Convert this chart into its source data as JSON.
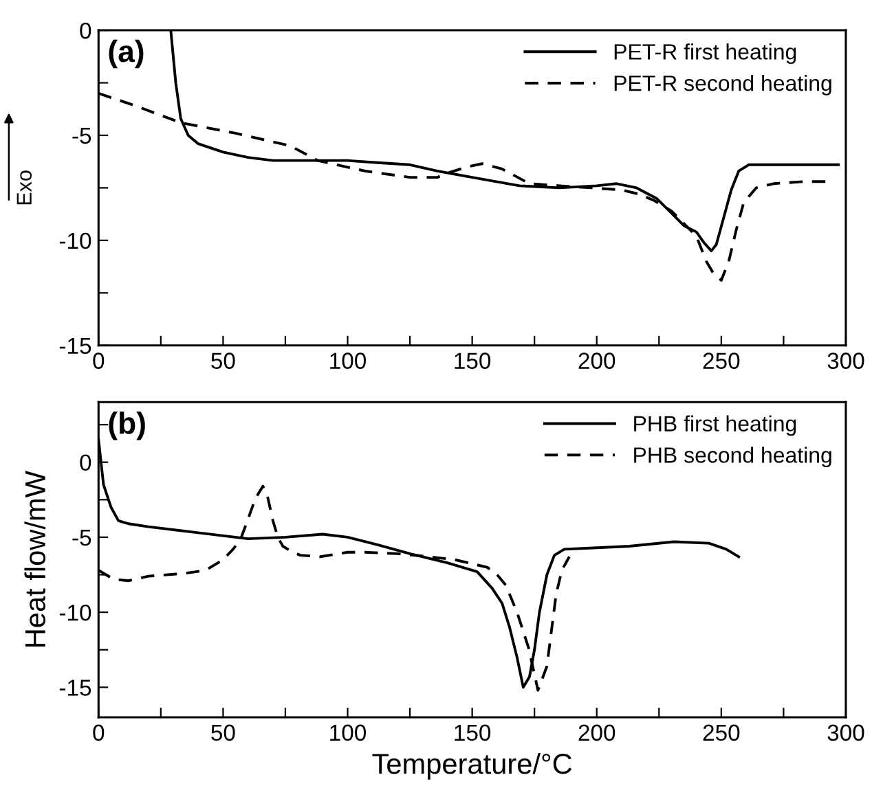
{
  "chart_data": [
    {
      "type": "line",
      "annotations": [
        "(a)"
      ],
      "ylabel": "Exo",
      "xlim": [
        0,
        300
      ],
      "ylim": [
        -15,
        0
      ],
      "xticks": [
        0,
        {
          "value": 25,
          "label": null
        },
        50,
        {
          "value": 75,
          "label": null
        },
        100,
        {
          "value": 125,
          "label": null
        },
        150,
        {
          "value": 175,
          "label": null
        },
        200,
        {
          "value": 225,
          "label": null
        },
        250,
        {
          "value": 275,
          "label": null
        },
        300
      ],
      "yticks": [
        -15,
        {
          "value": -12.5,
          "label": null
        },
        -10,
        {
          "value": -7.5,
          "label": null
        },
        -5,
        {
          "value": -2.5,
          "label": null
        },
        0
      ],
      "legend": "top right",
      "grid": false,
      "series": [
        {
          "name": "PET-R first heating",
          "color": "#000000",
          "line_style": "solid",
          "x": [
            29,
            31,
            33,
            36,
            40,
            50,
            60,
            70,
            90,
            100,
            112,
            125,
            136,
            150,
            169,
            185,
            200,
            208,
            216,
            224,
            230,
            235,
            240,
            243,
            246,
            248,
            251,
            254,
            257,
            261,
            270,
            297
          ],
          "values": [
            0,
            -2.5,
            -4.2,
            -5.0,
            -5.4,
            -5.8,
            -6.05,
            -6.2,
            -6.2,
            -6.2,
            -6.3,
            -6.4,
            -6.7,
            -7.0,
            -7.4,
            -7.5,
            -7.4,
            -7.3,
            -7.5,
            -8.0,
            -8.7,
            -9.3,
            -9.6,
            -10.1,
            -10.5,
            -10.2,
            -8.9,
            -7.6,
            -6.7,
            -6.4,
            -6.4,
            -6.4
          ]
        },
        {
          "name": "PET-R second heating",
          "color": "#000000",
          "line_style": "dashed",
          "x": [
            0,
            15,
            33,
            55,
            77,
            88,
            107,
            125,
            136,
            140,
            148,
            154,
            162,
            173,
            185,
            198,
            210,
            217,
            223,
            230,
            235,
            240,
            244,
            247,
            250,
            253,
            256,
            259,
            264,
            271,
            283,
            293
          ],
          "values": [
            -3.0,
            -3.6,
            -4.4,
            -4.9,
            -5.5,
            -6.2,
            -6.7,
            -7.0,
            -7.0,
            -6.8,
            -6.5,
            -6.35,
            -6.6,
            -7.3,
            -7.4,
            -7.5,
            -7.6,
            -7.8,
            -8.1,
            -8.6,
            -9.2,
            -9.8,
            -11.0,
            -11.6,
            -11.9,
            -11.0,
            -9.5,
            -8.2,
            -7.5,
            -7.3,
            -7.2,
            -7.2
          ]
        }
      ]
    },
    {
      "type": "line",
      "annotations": [
        "(b)"
      ],
      "ylabel": "Heat flow/mW",
      "xlabel": "Temperature/°C",
      "xlim": [
        0,
        300
      ],
      "ylim": [
        -17,
        4
      ],
      "xticks": [
        0,
        {
          "value": 25,
          "label": null
        },
        50,
        {
          "value": 75,
          "label": null
        },
        100,
        {
          "value": 125,
          "label": null
        },
        150,
        {
          "value": 175,
          "label": null
        },
        200,
        {
          "value": 225,
          "label": null
        },
        250,
        {
          "value": 275,
          "label": null
        },
        300
      ],
      "yticks": [
        -15,
        {
          "value": -12.5,
          "label": null
        },
        -10,
        {
          "value": -7.5,
          "label": null
        },
        -5,
        {
          "value": -2.5,
          "label": null
        },
        0,
        {
          "value": 2.5,
          "label": null
        }
      ],
      "legend": "top right",
      "grid": false,
      "series": [
        {
          "name": "PHB first heating",
          "color": "#000000",
          "line_style": "solid",
          "x": [
            0,
            2,
            5,
            8,
            12,
            20,
            40,
            60,
            75,
            90,
            100,
            112,
            125,
            140,
            152,
            158,
            162,
            165,
            168,
            170.5,
            173,
            175,
            177,
            180,
            183,
            187,
            200,
            213,
            231,
            245,
            252,
            257
          ],
          "values": [
            1.5,
            -1.5,
            -3.0,
            -3.9,
            -4.1,
            -4.3,
            -4.7,
            -5.1,
            -5.0,
            -4.8,
            -5.0,
            -5.5,
            -6.1,
            -6.7,
            -7.3,
            -8.4,
            -9.4,
            -11.0,
            -13.0,
            -15.0,
            -14.3,
            -12.5,
            -10.0,
            -7.5,
            -6.2,
            -5.8,
            -5.7,
            -5.6,
            -5.3,
            -5.4,
            -5.8,
            -6.3
          ]
        },
        {
          "name": "PHB second heating",
          "color": "#000000",
          "line_style": "dashed",
          "x": [
            0,
            6,
            12,
            20,
            35,
            43,
            50,
            54,
            57,
            60,
            63,
            66,
            68,
            70,
            72,
            74,
            78,
            81,
            89,
            100,
            107,
            120,
            130,
            143,
            156,
            160,
            163.5,
            168,
            172.7,
            176.4,
            180,
            182,
            183.7,
            186,
            189
          ],
          "values": [
            -7.2,
            -7.8,
            -7.9,
            -7.6,
            -7.4,
            -7.2,
            -6.5,
            -5.8,
            -5.15,
            -3.8,
            -2.4,
            -1.6,
            -2.4,
            -3.9,
            -5.0,
            -5.6,
            -6.0,
            -6.2,
            -6.3,
            -6.0,
            -6.0,
            -6.1,
            -6.25,
            -6.5,
            -7.0,
            -7.5,
            -8.2,
            -10.0,
            -12.4,
            -15.2,
            -13.6,
            -11.0,
            -8.8,
            -7.2,
            -6.3
          ]
        }
      ]
    }
  ]
}
